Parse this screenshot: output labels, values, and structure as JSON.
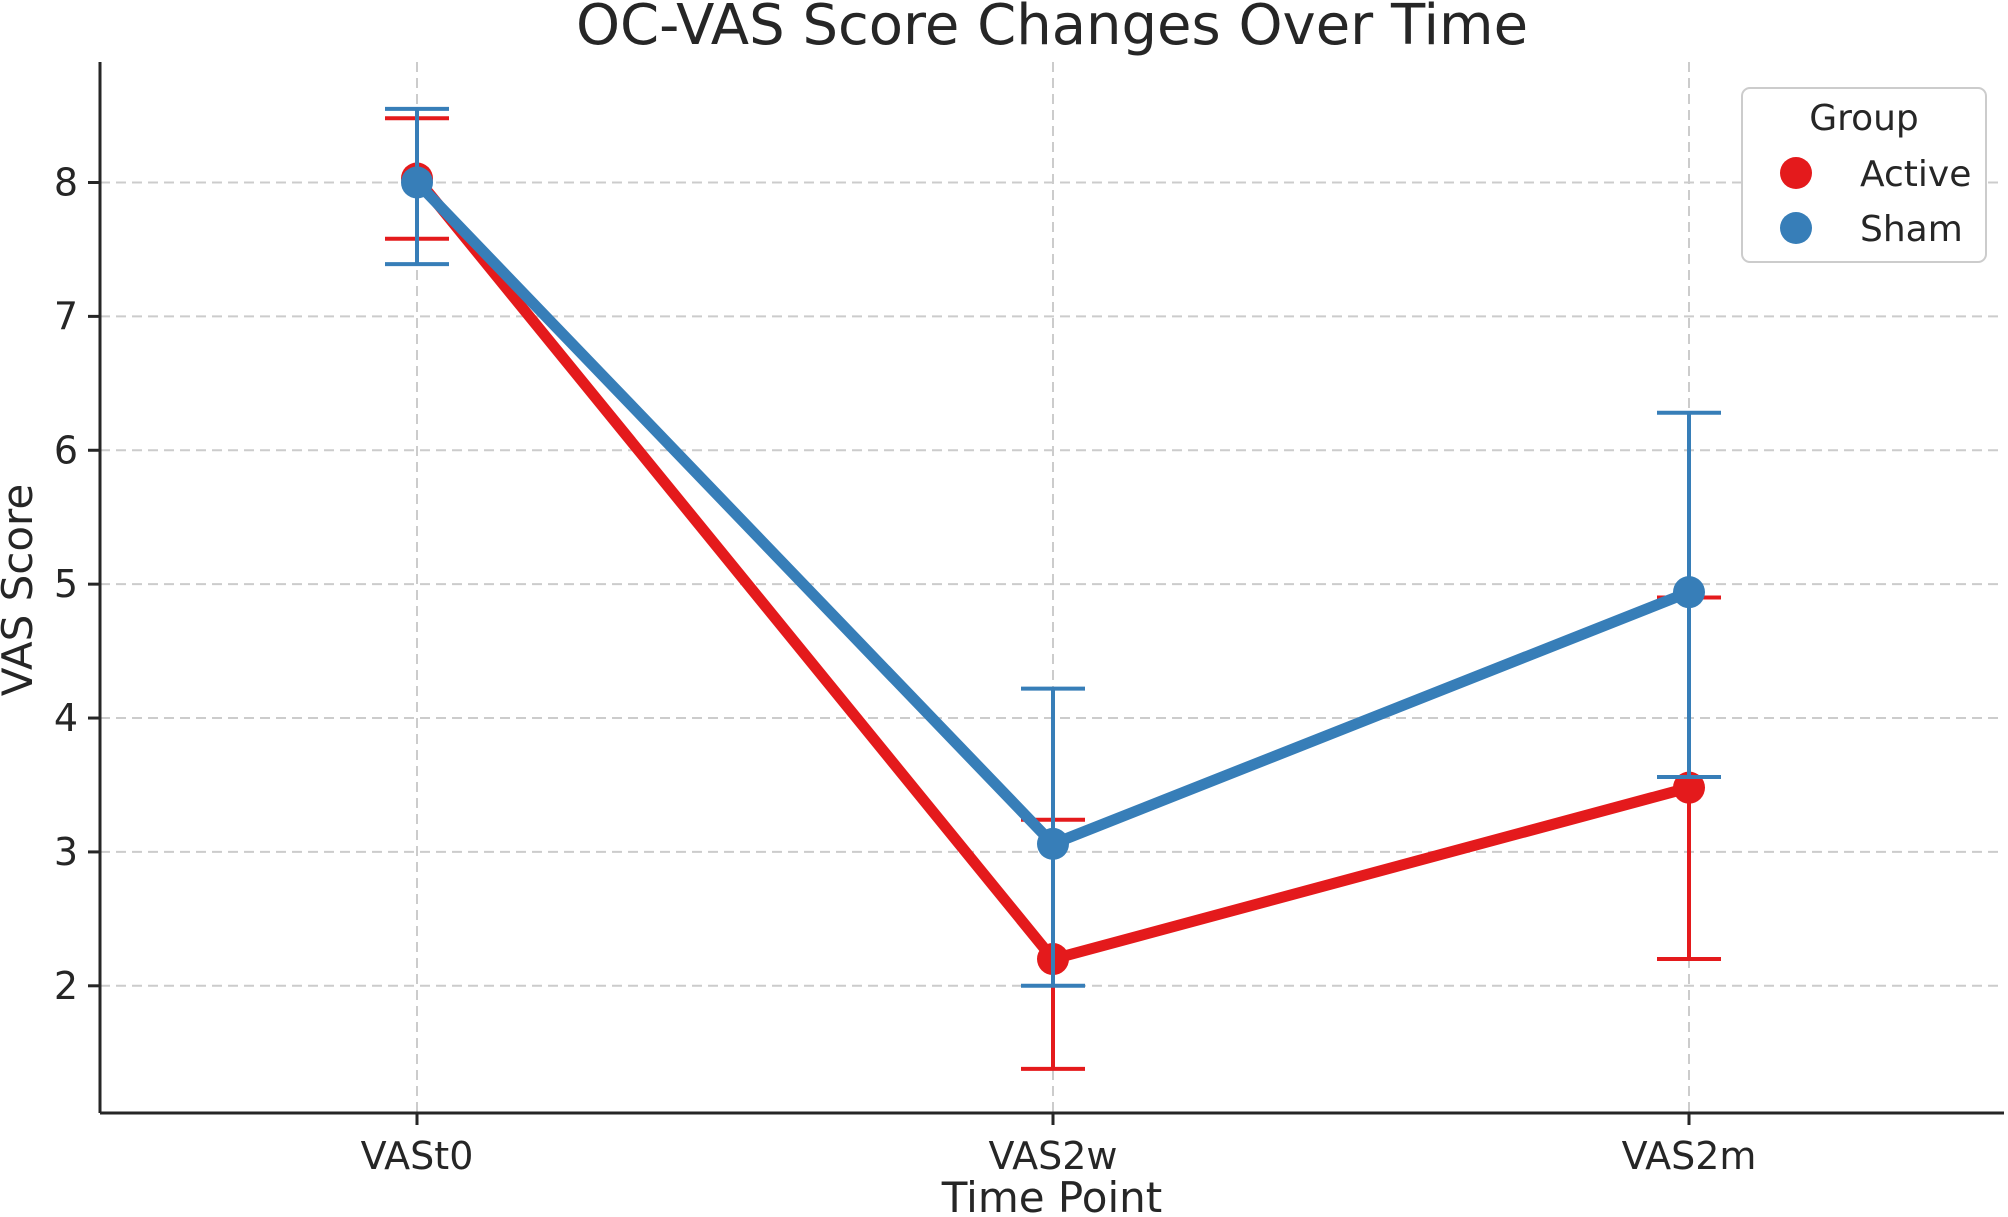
{
  "chart_data": {
    "type": "line",
    "title": "OC-VAS Score Changes Over Time",
    "xlabel": "Time Point",
    "ylabel": "VAS Score",
    "categories": [
      "VASt0",
      "VAS2w",
      "VAS2m"
    ],
    "ylim": [
      1.05,
      8.9
    ],
    "yticks": [
      2,
      3,
      4,
      5,
      6,
      7,
      8
    ],
    "grid": true,
    "legend": {
      "title": "Group",
      "placement": "top-right"
    },
    "series": [
      {
        "name": "Active",
        "color": "#e41a1c",
        "values": [
          8.03,
          2.2,
          3.48
        ],
        "err_low": [
          7.58,
          1.38,
          2.2
        ],
        "err_high": [
          8.48,
          3.24,
          4.9
        ]
      },
      {
        "name": "Sham",
        "color": "#377eb8",
        "values": [
          8.0,
          3.06,
          4.94
        ],
        "err_low": [
          7.39,
          2.0,
          3.56
        ],
        "err_high": [
          8.55,
          4.22,
          6.28
        ]
      }
    ]
  }
}
